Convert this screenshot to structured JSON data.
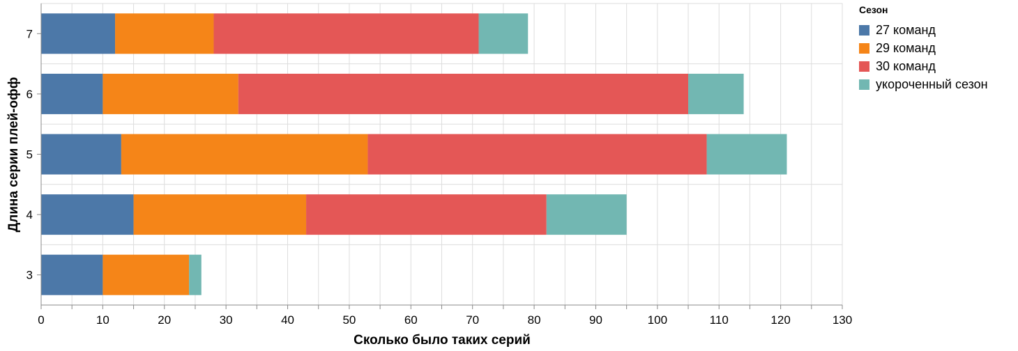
{
  "chart_data": {
    "type": "bar",
    "orientation": "horizontal",
    "stacked": true,
    "categories": [
      "7",
      "6",
      "5",
      "4",
      "3"
    ],
    "series": [
      {
        "name": "27 команд",
        "color": "#4c78a8",
        "values": [
          12,
          10,
          13,
          15,
          10
        ]
      },
      {
        "name": "29 команд",
        "color": "#f58518",
        "values": [
          16,
          22,
          40,
          28,
          14
        ]
      },
      {
        "name": "30 команд",
        "color": "#e45756",
        "values": [
          43,
          73,
          55,
          39,
          0
        ]
      },
      {
        "name": "укороченный сезон",
        "color": "#72b7b2",
        "values": [
          8,
          9,
          13,
          13,
          2
        ]
      }
    ],
    "xlabel": "Сколько было таких серий",
    "ylabel": "Длина серии плей-офф",
    "xlim": [
      0,
      130
    ],
    "xticks": [
      0,
      10,
      20,
      30,
      40,
      50,
      60,
      70,
      80,
      90,
      100,
      110,
      120,
      130
    ],
    "grid": true,
    "legend_title": "Сезон",
    "legend_position": "right"
  }
}
